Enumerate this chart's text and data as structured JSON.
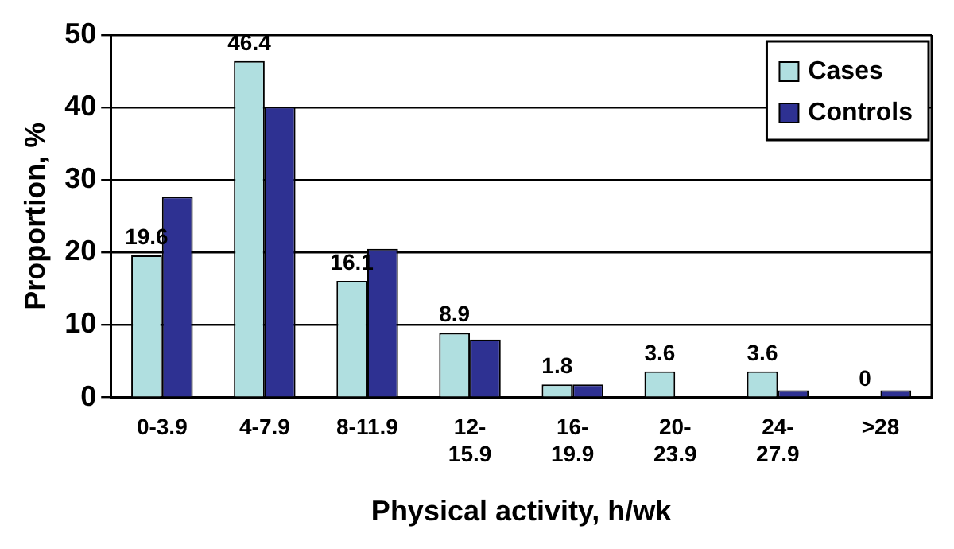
{
  "chart_data": {
    "type": "bar",
    "xlabel": "Physical activity, h/wk",
    "ylabel": "Proportion, %",
    "categories": [
      "0-3.9",
      "4-7.9",
      "8-11.9",
      "12-15.9",
      "16-19.9",
      "20-23.9",
      "24-27.9",
      ">28"
    ],
    "series": [
      {
        "name": "Cases",
        "color": "#b0dfe0",
        "values": [
          19.6,
          46.4,
          16.1,
          8.9,
          1.8,
          3.6,
          3.6,
          0
        ],
        "value_labels": [
          "19.6",
          "46.4",
          "16.1",
          "8.9",
          "1.8",
          "3.6",
          "3.6",
          "0"
        ]
      },
      {
        "name": "Controls",
        "color": "#2e3192",
        "values": [
          27.7,
          40.1,
          20.5,
          8.0,
          1.8,
          0,
          1.0,
          1.0
        ]
      }
    ],
    "ylim": [
      0,
      50
    ],
    "yticks": [
      0,
      10,
      20,
      30,
      40,
      50
    ],
    "grid": "y",
    "legend": "top right"
  }
}
